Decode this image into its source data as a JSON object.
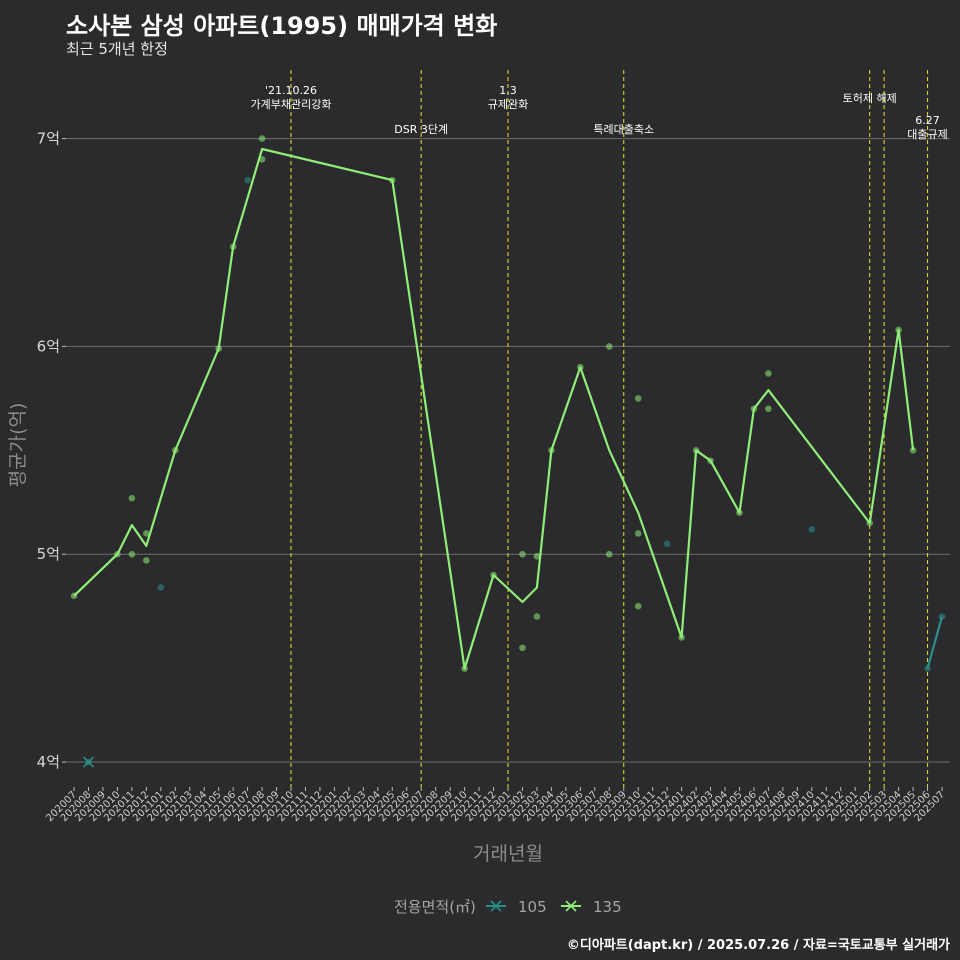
{
  "chart_data": {
    "type": "line",
    "title": "소사본 삼성 아파트(1995) 매매가격 변화",
    "subtitle": "최근 5개년 한정",
    "xlabel": "거래년월",
    "ylabel": "평균가(억)",
    "caption": "©디아파트(dapt.kr) / 2025.07.26 / 자료=국토교통부 실거래가",
    "ylim": [
      3.88,
      7.33
    ],
    "yticks": [
      4,
      5,
      6,
      7
    ],
    "ytick_labels": [
      "4억",
      "5억",
      "6억",
      "7억"
    ],
    "categories": [
      "202007",
      "202008",
      "202009",
      "202010",
      "202011",
      "202012",
      "202101",
      "202102",
      "202103",
      "202104",
      "202105",
      "202106",
      "202107",
      "202108",
      "202109",
      "202110",
      "202111",
      "202112",
      "202201",
      "202202",
      "202203",
      "202204",
      "202205",
      "202206",
      "202207",
      "202208",
      "202209",
      "202210",
      "202211",
      "202212",
      "202301",
      "202302",
      "202303",
      "202304",
      "202305",
      "202306",
      "202307",
      "202308",
      "202309",
      "202310",
      "202311",
      "202312",
      "202401",
      "202402",
      "202403",
      "202404",
      "202405",
      "202406",
      "202407",
      "202408",
      "202409",
      "202410",
      "202411",
      "202412",
      "202501",
      "202502",
      "202503",
      "202504",
      "202505",
      "202506",
      "202507"
    ],
    "legend": {
      "title": "전용면적(㎡)",
      "entries": [
        "105",
        "135"
      ]
    },
    "colors": {
      "105": "#2a8f8c",
      "135": "#90ee78",
      "event": "#d7d72b",
      "grid": "#6e6e6e"
    },
    "series": [
      {
        "name": "105",
        "line": [
          {
            "x": "202506",
            "y": 4.45
          },
          {
            "x": "202507",
            "y": 4.7
          }
        ],
        "points": [
          {
            "x": "202008",
            "y": 4.0
          },
          {
            "x": "202101",
            "y": 4.84
          },
          {
            "x": "202107",
            "y": 6.8
          },
          {
            "x": "202410",
            "y": 5.12
          },
          {
            "x": "202312",
            "y": 5.05
          },
          {
            "x": "202506",
            "y": 4.45
          },
          {
            "x": "202507",
            "y": 4.7
          }
        ]
      },
      {
        "name": "135",
        "line": [
          {
            "x": "202007",
            "y": 4.8
          },
          {
            "x": "202010",
            "y": 5.0
          },
          {
            "x": "202011",
            "y": 5.14
          },
          {
            "x": "202012",
            "y": 5.04
          },
          {
            "x": "202102",
            "y": 5.5
          },
          {
            "x": "202105",
            "y": 5.99
          },
          {
            "x": "202106",
            "y": 6.48
          },
          {
            "x": "202108",
            "y": 6.95
          },
          {
            "x": "202205",
            "y": 6.8
          },
          {
            "x": "202210",
            "y": 4.45
          },
          {
            "x": "202212",
            "y": 4.9
          },
          {
            "x": "202302",
            "y": 4.77
          },
          {
            "x": "202303",
            "y": 4.84
          },
          {
            "x": "202304",
            "y": 5.5
          },
          {
            "x": "202306",
            "y": 5.9
          },
          {
            "x": "202308",
            "y": 5.5
          },
          {
            "x": "202310",
            "y": 5.2
          },
          {
            "x": "202401",
            "y": 4.6
          },
          {
            "x": "202402",
            "y": 5.5
          },
          {
            "x": "202403",
            "y": 5.45
          },
          {
            "x": "202405",
            "y": 5.2
          },
          {
            "x": "202406",
            "y": 5.7
          },
          {
            "x": "202407",
            "y": 5.79
          },
          {
            "x": "202502",
            "y": 5.15
          },
          {
            "x": "202504",
            "y": 6.08
          },
          {
            "x": "202505",
            "y": 5.5
          }
        ],
        "points": [
          {
            "x": "202007",
            "y": 4.8
          },
          {
            "x": "202010",
            "y": 5.0
          },
          {
            "x": "202011",
            "y": 5.27
          },
          {
            "x": "202011",
            "y": 5.0
          },
          {
            "x": "202012",
            "y": 5.1
          },
          {
            "x": "202012",
            "y": 4.97
          },
          {
            "x": "202102",
            "y": 5.5
          },
          {
            "x": "202105",
            "y": 5.99
          },
          {
            "x": "202106",
            "y": 6.48
          },
          {
            "x": "202108",
            "y": 7.0
          },
          {
            "x": "202108",
            "y": 6.9
          },
          {
            "x": "202205",
            "y": 6.8
          },
          {
            "x": "202210",
            "y": 4.45
          },
          {
            "x": "202212",
            "y": 4.9
          },
          {
            "x": "202302",
            "y": 5.0
          },
          {
            "x": "202302",
            "y": 4.55
          },
          {
            "x": "202303",
            "y": 4.99
          },
          {
            "x": "202303",
            "y": 4.7
          },
          {
            "x": "202304",
            "y": 5.5
          },
          {
            "x": "202306",
            "y": 5.9
          },
          {
            "x": "202308",
            "y": 6.0
          },
          {
            "x": "202308",
            "y": 5.0
          },
          {
            "x": "202310",
            "y": 5.75
          },
          {
            "x": "202310",
            "y": 5.1
          },
          {
            "x": "202310",
            "y": 4.75
          },
          {
            "x": "202401",
            "y": 4.6
          },
          {
            "x": "202402",
            "y": 5.5
          },
          {
            "x": "202403",
            "y": 5.45
          },
          {
            "x": "202405",
            "y": 5.2
          },
          {
            "x": "202406",
            "y": 5.7
          },
          {
            "x": "202407",
            "y": 5.87
          },
          {
            "x": "202407",
            "y": 5.7
          },
          {
            "x": "202502",
            "y": 5.15
          },
          {
            "x": "202504",
            "y": 6.08
          },
          {
            "x": "202505",
            "y": 5.5
          }
        ]
      }
    ],
    "events": [
      {
        "x": "202110",
        "label": [
          "'21.10.26",
          "가계부채관리강화"
        ],
        "row": "upper"
      },
      {
        "x": "202207",
        "label": [
          "DSR 3단계"
        ],
        "row": "lower"
      },
      {
        "x": "202301",
        "label": [
          "1.3",
          "규제완화"
        ],
        "row": "upper"
      },
      {
        "x": "202309",
        "label": [
          "특례대출축소"
        ],
        "row": "lower"
      },
      {
        "x": "202502",
        "label": [
          "토허제 해제"
        ],
        "row": "upper"
      },
      {
        "x": "202503",
        "label": [],
        "row": "upper"
      },
      {
        "x": "202506",
        "label": [
          "6.27",
          "대출규제"
        ],
        "row": "mid"
      }
    ]
  }
}
